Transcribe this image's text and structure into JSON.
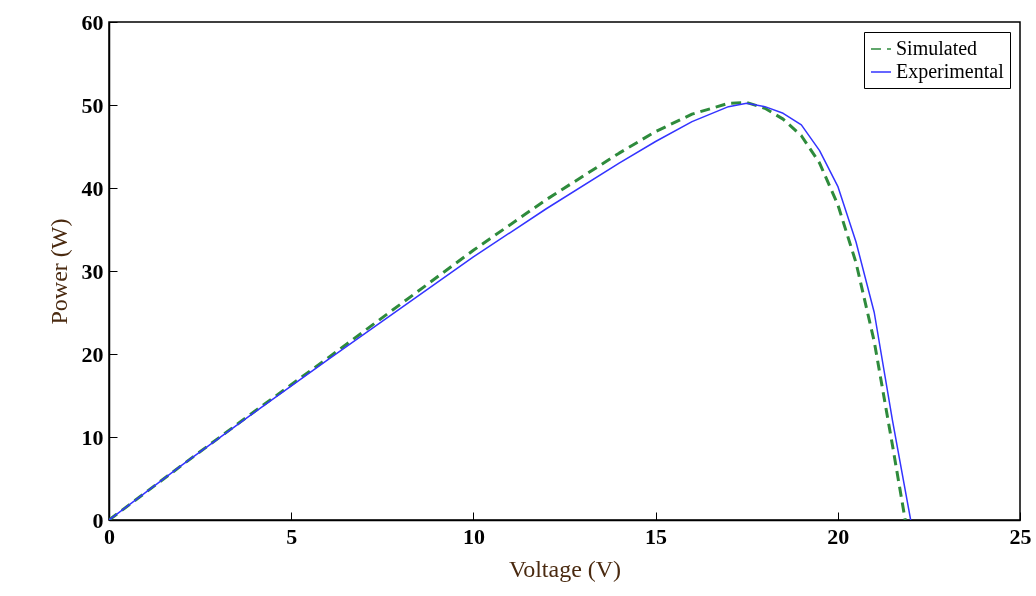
{
  "chart_data": {
    "type": "line",
    "xlabel": "Voltage (V)",
    "ylabel": "Power (W)",
    "xlim": [
      0,
      25
    ],
    "ylim": [
      0,
      60
    ],
    "xticks": [
      0,
      5,
      10,
      15,
      20,
      25
    ],
    "yticks": [
      0,
      10,
      20,
      30,
      40,
      50,
      60
    ],
    "grid": false,
    "legend": "top right",
    "marker": "none",
    "series": [
      {
        "name": "Simulated",
        "color": "#2e8b3c",
        "line_style": "dashed",
        "x": [
          0,
          2,
          4,
          6,
          8,
          10,
          12,
          14,
          15,
          16,
          17,
          17.5,
          18,
          18.5,
          19,
          19.5,
          20,
          20.5,
          21,
          21.5,
          21.85
        ],
        "values": [
          0,
          6.6,
          13.1,
          19.5,
          26,
          32.5,
          38.6,
          44.2,
          46.8,
          48.9,
          50.2,
          50.3,
          49.6,
          48.3,
          46.3,
          43,
          38,
          31,
          21.5,
          9,
          0
        ]
      },
      {
        "name": "Experimental",
        "color": "#3333ff",
        "line_style": "solid",
        "x": [
          0,
          2,
          4,
          6,
          8,
          10,
          12,
          14,
          15,
          16,
          17,
          17.5,
          18,
          18.5,
          19,
          19.5,
          20,
          20.5,
          21,
          21.5,
          22
        ],
        "values": [
          0,
          6.6,
          13,
          19.3,
          25.5,
          31.7,
          37.5,
          43,
          45.6,
          48,
          49.8,
          50.2,
          49.8,
          49,
          47.6,
          44.5,
          40.2,
          33.5,
          25,
          12,
          0
        ]
      }
    ]
  }
}
